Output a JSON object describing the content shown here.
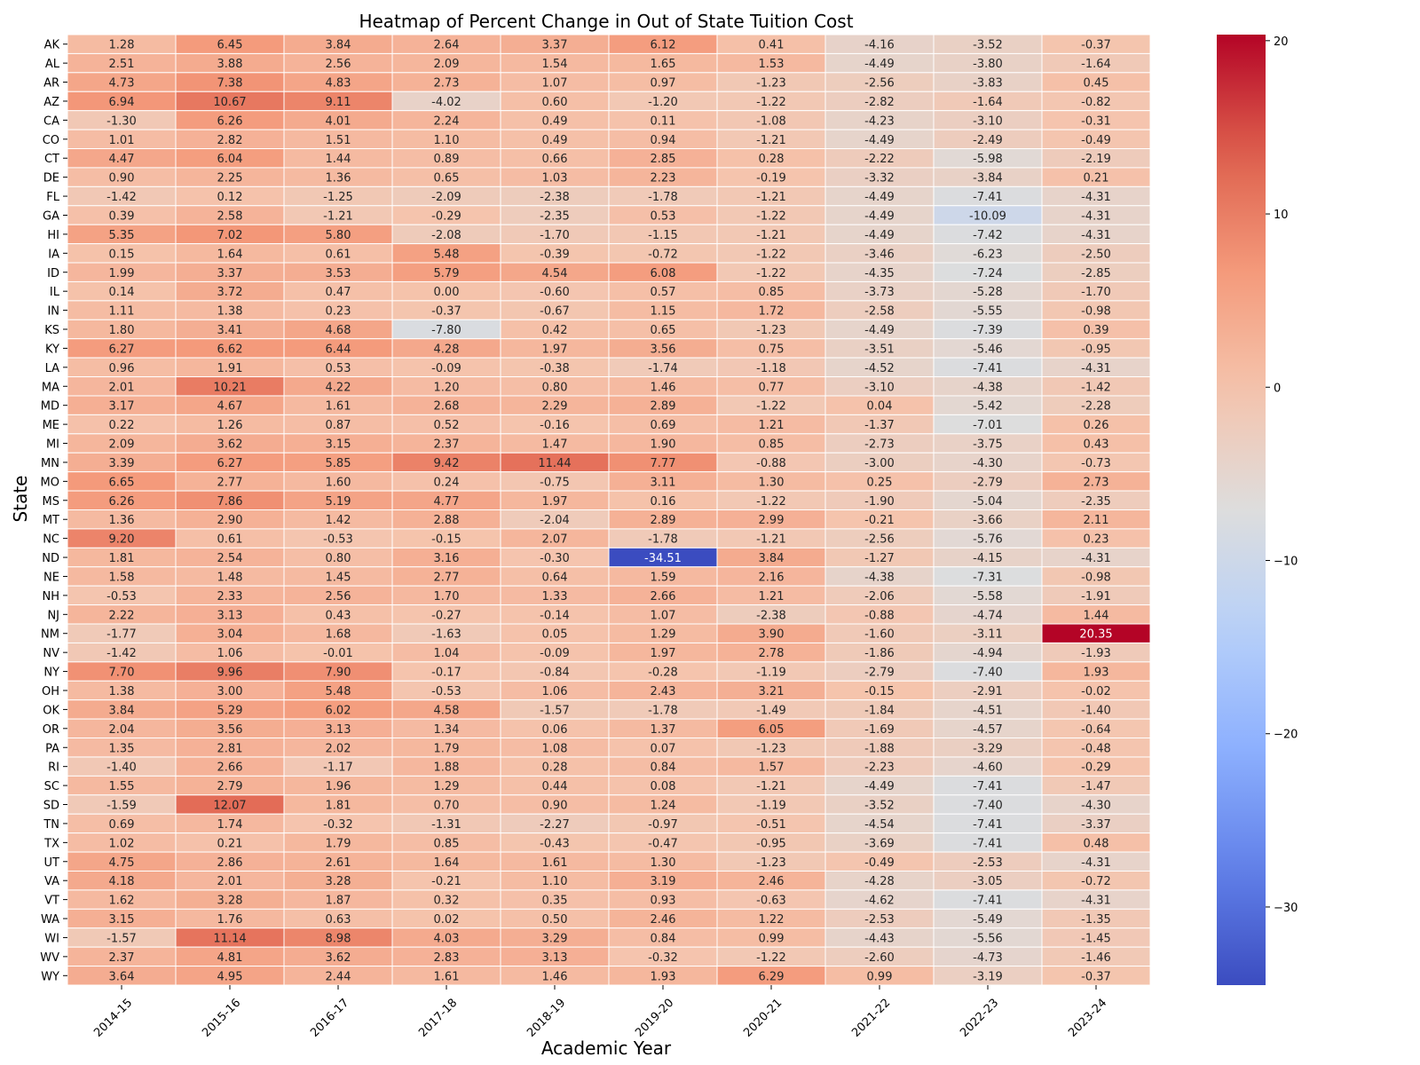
{
  "chart_data": {
    "type": "heatmap",
    "title": "Heatmap of Percent Change in Out of State Tuition Cost",
    "xlabel": "Academic Year",
    "ylabel": "State",
    "colormap": "coolwarm",
    "color_range": [
      -34.51,
      20.35
    ],
    "colorbar_ticks": [
      20,
      10,
      0,
      -10,
      -20,
      -30
    ],
    "x": [
      "2014-15",
      "2015-16",
      "2016-17",
      "2017-18",
      "2018-19",
      "2019-20",
      "2020-21",
      "2021-22",
      "2022-23",
      "2023-24"
    ],
    "y": [
      "AK",
      "AL",
      "AR",
      "AZ",
      "CA",
      "CO",
      "CT",
      "DE",
      "FL",
      "GA",
      "HI",
      "IA",
      "ID",
      "IL",
      "IN",
      "KS",
      "KY",
      "LA",
      "MA",
      "MD",
      "ME",
      "MI",
      "MN",
      "MO",
      "MS",
      "MT",
      "NC",
      "ND",
      "NE",
      "NH",
      "NJ",
      "NM",
      "NV",
      "NY",
      "OH",
      "OK",
      "OR",
      "PA",
      "RI",
      "SC",
      "SD",
      "TN",
      "TX",
      "UT",
      "VA",
      "VT",
      "WA",
      "WI",
      "WV",
      "WY"
    ],
    "values": [
      [
        1.28,
        6.45,
        3.84,
        2.64,
        3.37,
        6.12,
        0.41,
        -4.16,
        -3.52,
        -0.37
      ],
      [
        2.51,
        3.88,
        2.56,
        2.09,
        1.54,
        1.65,
        1.53,
        -4.49,
        -3.8,
        -1.64
      ],
      [
        4.73,
        7.38,
        4.83,
        2.73,
        1.07,
        0.97,
        -1.23,
        -2.56,
        -3.83,
        0.45
      ],
      [
        6.94,
        10.67,
        9.11,
        -4.02,
        0.6,
        -1.2,
        -1.22,
        -2.82,
        -1.64,
        -0.82
      ],
      [
        -1.3,
        6.26,
        4.01,
        2.24,
        0.49,
        0.11,
        -1.08,
        -4.23,
        -3.1,
        -0.31
      ],
      [
        1.01,
        2.82,
        1.51,
        1.1,
        0.49,
        0.94,
        -1.21,
        -4.49,
        -2.49,
        -0.49
      ],
      [
        4.47,
        6.04,
        1.44,
        0.89,
        0.66,
        2.85,
        0.28,
        -2.22,
        -5.98,
        -2.19
      ],
      [
        0.9,
        2.25,
        1.36,
        0.65,
        1.03,
        2.23,
        -0.19,
        -3.32,
        -3.84,
        0.21
      ],
      [
        -1.42,
        0.12,
        -1.25,
        -2.09,
        -2.38,
        -1.78,
        -1.21,
        -4.49,
        -7.41,
        -4.31
      ],
      [
        0.39,
        2.58,
        -1.21,
        -0.29,
        -2.35,
        0.53,
        -1.22,
        -4.49,
        -10.09,
        -4.31
      ],
      [
        5.35,
        7.02,
        5.8,
        -2.08,
        -1.7,
        -1.15,
        -1.21,
        -4.49,
        -7.42,
        -4.31
      ],
      [
        0.15,
        1.64,
        0.61,
        5.48,
        -0.39,
        -0.72,
        -1.22,
        -3.46,
        -6.23,
        -2.5
      ],
      [
        1.99,
        3.37,
        3.53,
        5.79,
        4.54,
        6.08,
        -1.22,
        -4.35,
        -7.24,
        -2.85
      ],
      [
        0.14,
        3.72,
        0.47,
        0.0,
        -0.6,
        0.57,
        0.85,
        -3.73,
        -5.28,
        -1.7
      ],
      [
        1.11,
        1.38,
        0.23,
        -0.37,
        -0.67,
        1.15,
        1.72,
        -2.58,
        -5.55,
        -0.98
      ],
      [
        1.8,
        3.41,
        4.68,
        -7.8,
        0.42,
        0.65,
        -1.23,
        -4.49,
        -7.39,
        0.39
      ],
      [
        6.27,
        6.62,
        6.44,
        4.28,
        1.97,
        3.56,
        0.75,
        -3.51,
        -5.46,
        -0.95
      ],
      [
        0.96,
        1.91,
        0.53,
        -0.09,
        -0.38,
        -1.74,
        -1.18,
        -4.52,
        -7.41,
        -4.31
      ],
      [
        2.01,
        10.21,
        4.22,
        1.2,
        0.8,
        1.46,
        0.77,
        -3.1,
        -4.38,
        -1.42
      ],
      [
        3.17,
        4.67,
        1.61,
        2.68,
        2.29,
        2.89,
        -1.22,
        0.04,
        -5.42,
        -2.28
      ],
      [
        0.22,
        1.26,
        0.87,
        0.52,
        -0.16,
        0.69,
        1.21,
        -1.37,
        -7.01,
        0.26
      ],
      [
        2.09,
        3.62,
        3.15,
        2.37,
        1.47,
        1.9,
        0.85,
        -2.73,
        -3.75,
        0.43
      ],
      [
        3.39,
        6.27,
        5.85,
        9.42,
        11.44,
        7.77,
        -0.88,
        -3.0,
        -4.3,
        -0.73
      ],
      [
        6.65,
        2.77,
        1.6,
        0.24,
        -0.75,
        3.11,
        1.3,
        0.25,
        -2.79,
        2.73
      ],
      [
        6.26,
        7.86,
        5.19,
        4.77,
        1.97,
        0.16,
        -1.22,
        -1.9,
        -5.04,
        -2.35
      ],
      [
        1.36,
        2.9,
        1.42,
        2.88,
        -2.04,
        2.89,
        2.99,
        -0.21,
        -3.66,
        2.11
      ],
      [
        9.2,
        0.61,
        -0.53,
        -0.15,
        2.07,
        -1.78,
        -1.21,
        -2.56,
        -5.76,
        0.23
      ],
      [
        1.81,
        2.54,
        0.8,
        3.16,
        -0.3,
        -34.51,
        3.84,
        -1.27,
        -4.15,
        -4.31
      ],
      [
        1.58,
        1.48,
        1.45,
        2.77,
        0.64,
        1.59,
        2.16,
        -4.38,
        -7.31,
        -0.98
      ],
      [
        -0.53,
        2.33,
        2.56,
        1.7,
        1.33,
        2.66,
        1.21,
        -2.06,
        -5.58,
        -1.91
      ],
      [
        2.22,
        3.13,
        0.43,
        -0.27,
        -0.14,
        1.07,
        -2.38,
        -0.88,
        -4.74,
        1.44
      ],
      [
        -1.77,
        3.04,
        1.68,
        -1.63,
        0.05,
        1.29,
        3.9,
        -1.6,
        -3.11,
        20.35
      ],
      [
        -1.42,
        1.06,
        -0.01,
        1.04,
        -0.09,
        1.97,
        2.78,
        -1.86,
        -4.94,
        -1.93
      ],
      [
        7.7,
        9.96,
        7.9,
        -0.17,
        -0.84,
        -0.28,
        -1.19,
        -2.79,
        -7.4,
        1.93
      ],
      [
        1.38,
        3.0,
        5.48,
        -0.53,
        1.06,
        2.43,
        3.21,
        -0.15,
        -2.91,
        -0.02
      ],
      [
        3.84,
        5.29,
        6.02,
        4.58,
        -1.57,
        -1.78,
        -1.49,
        -1.84,
        -4.51,
        -1.4
      ],
      [
        2.04,
        3.56,
        3.13,
        1.34,
        0.06,
        1.37,
        6.05,
        -1.69,
        -4.57,
        -0.64
      ],
      [
        1.35,
        2.81,
        2.02,
        1.79,
        1.08,
        0.07,
        -1.23,
        -1.88,
        -3.29,
        -0.48
      ],
      [
        -1.4,
        2.66,
        -1.17,
        1.88,
        0.28,
        0.84,
        1.57,
        -2.23,
        -4.6,
        -0.29
      ],
      [
        1.55,
        2.79,
        1.96,
        1.29,
        0.44,
        0.08,
        -1.21,
        -4.49,
        -7.41,
        -1.47
      ],
      [
        -1.59,
        12.07,
        1.81,
        0.7,
        0.9,
        1.24,
        -1.19,
        -3.52,
        -7.4,
        -4.3
      ],
      [
        0.69,
        1.74,
        -0.32,
        -1.31,
        -2.27,
        -0.97,
        -0.51,
        -4.54,
        -7.41,
        -3.37
      ],
      [
        1.02,
        0.21,
        1.79,
        0.85,
        -0.43,
        -0.47,
        -0.95,
        -3.69,
        -7.41,
        0.48
      ],
      [
        4.75,
        2.86,
        2.61,
        1.64,
        1.61,
        1.3,
        -1.23,
        -0.49,
        -2.53,
        -4.31
      ],
      [
        4.18,
        2.01,
        3.28,
        -0.21,
        1.1,
        3.19,
        2.46,
        -4.28,
        -3.05,
        -0.72
      ],
      [
        1.62,
        3.28,
        1.87,
        0.32,
        0.35,
        0.93,
        -0.63,
        -4.62,
        -7.41,
        -4.31
      ],
      [
        3.15,
        1.76,
        0.63,
        0.02,
        0.5,
        2.46,
        1.22,
        -2.53,
        -5.49,
        -1.35
      ],
      [
        -1.57,
        11.14,
        8.98,
        4.03,
        3.29,
        0.84,
        0.99,
        -4.43,
        -5.56,
        -1.45
      ],
      [
        2.37,
        4.81,
        3.62,
        2.83,
        3.13,
        -0.32,
        -1.22,
        -2.6,
        -4.73,
        -1.46
      ],
      [
        3.64,
        4.95,
        2.44,
        1.61,
        1.46,
        1.93,
        6.29,
        0.99,
        -3.19,
        -0.37
      ]
    ]
  }
}
